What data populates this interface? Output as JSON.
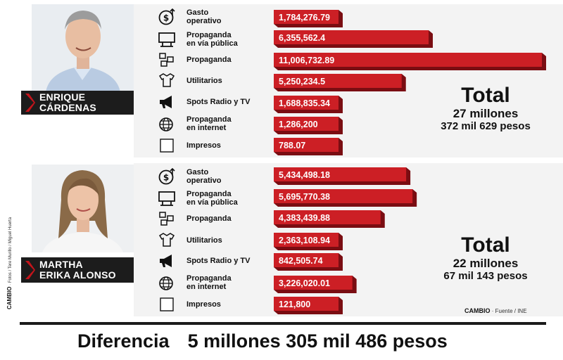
{
  "chart_data": [
    {
      "type": "bar",
      "orientation": "horizontal",
      "candidate": [
        "ENRIQUE",
        "CÁRDENAS"
      ],
      "categories": [
        [
          "Gasto",
          "operativo"
        ],
        [
          "Propaganda",
          "en vía pública"
        ],
        [
          "Propaganda"
        ],
        [
          "Utilitarios"
        ],
        [
          "Spots Radio y TV"
        ],
        [
          "Propaganda",
          "en internet"
        ],
        [
          "Impresos"
        ]
      ],
      "icons": [
        "money-icon",
        "billboard-icon",
        "flyers-icon",
        "tshirt-cap-icon",
        "megaphone-icon",
        "globe-icon",
        "blank-box-icon"
      ],
      "values": [
        1784276.79,
        6355562.4,
        11006732.89,
        5250234.5,
        1688835.34,
        1286200,
        788.07
      ],
      "value_labels": [
        "1,784,276.79",
        "6,355,562.4",
        "11,006,732.89",
        "5,250,234.5",
        "1,688,835.34",
        "1,286,200",
        "788.07"
      ],
      "total": {
        "title": "Total",
        "line1": "27 millones",
        "line2": "372 mil 629 pesos"
      }
    },
    {
      "type": "bar",
      "orientation": "horizontal",
      "candidate": [
        "MARTHA",
        "ERIKA ALONSO"
      ],
      "categories": [
        [
          "Gasto",
          "operativo"
        ],
        [
          "Propaganda",
          "en vía pública"
        ],
        [
          "Propaganda"
        ],
        [
          "Utilitarios"
        ],
        [
          "Spots Radio y TV"
        ],
        [
          "Propaganda",
          "en internet"
        ],
        [
          "Impresos"
        ]
      ],
      "icons": [
        "money-icon",
        "billboard-icon",
        "flyers-icon",
        "tshirt-cap-icon",
        "megaphone-icon",
        "globe-icon",
        "blank-box-icon"
      ],
      "values": [
        5434498.18,
        5695770.38,
        4383439.88,
        2363108.94,
        842505.74,
        3226020.01,
        121800
      ],
      "value_labels": [
        "5,434,498.18",
        "5,695,770.38",
        "4,383,439.88",
        "2,363,108.94",
        "842,505.74",
        "3,226,020.01",
        "121,800"
      ],
      "total": {
        "title": "Total",
        "line1": "22 millones",
        "line2": "67 mil 143 pesos"
      }
    }
  ],
  "colors": {
    "bar": "#cc1f25",
    "bar_shadow": "#7a0d12",
    "dark": "#1c1c1c",
    "accent": "#c4141b"
  },
  "difference": {
    "label": "Diferencia",
    "value": "5 millones 305 mil 486 pesos"
  },
  "credits": {
    "brand": "CAMBIO",
    "photos": "· Fotos / Tere Murillo / Miguel Huerta",
    "source": "· Fuente / INE"
  }
}
